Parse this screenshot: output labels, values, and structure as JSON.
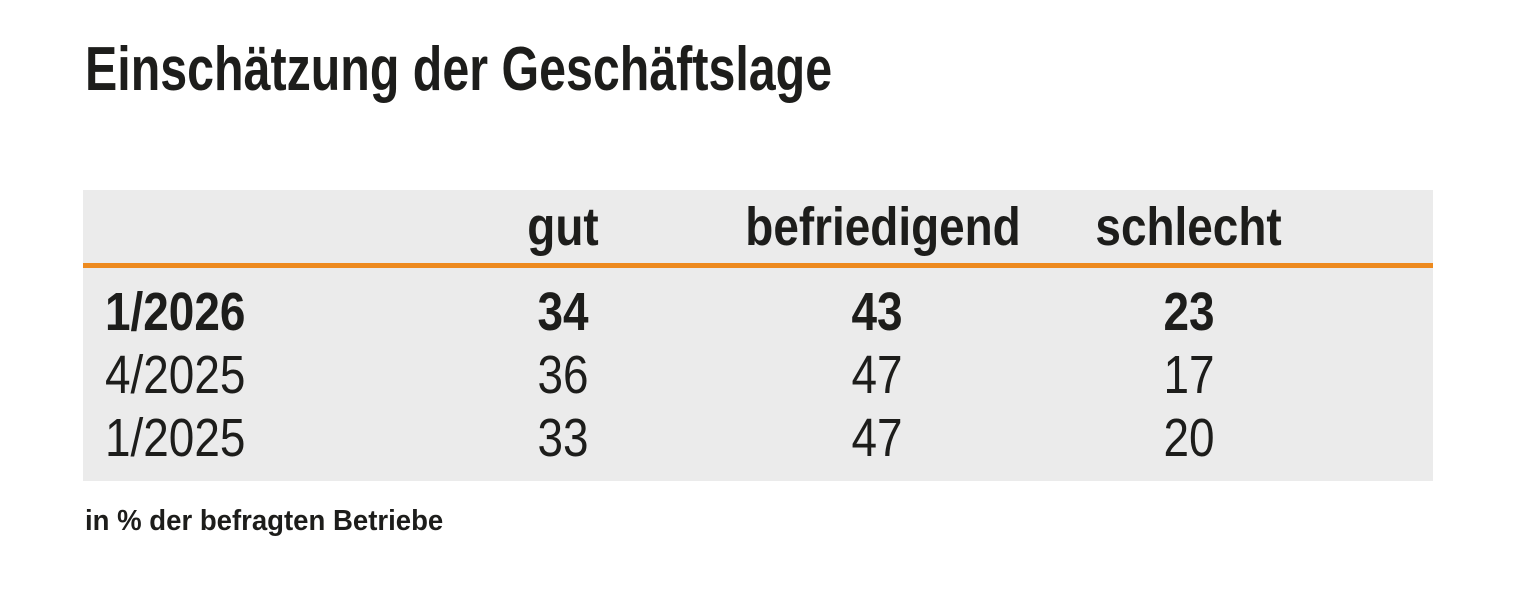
{
  "title": "Einschätzung der Geschäftslage",
  "table": {
    "header": [
      "gut",
      "befriedigend",
      "schlecht"
    ],
    "rows": [
      {
        "period": "1/2026",
        "values": [
          "34",
          "43",
          "23"
        ]
      },
      {
        "period": "4/2025",
        "values": [
          "36",
          "47",
          "17"
        ]
      },
      {
        "period": "1/2025",
        "values": [
          "33",
          "47",
          "20"
        ]
      }
    ]
  },
  "footnote": "in % der befragten Betriebe",
  "colors": {
    "accent_orange": "#ED8A1F",
    "table_background": "#EBEBEB",
    "text": "#1D1D1B"
  },
  "chart_data": {
    "type": "table",
    "title": "Einschätzung der Geschäftslage",
    "columns": [
      "",
      "gut",
      "befriedigend",
      "schlecht"
    ],
    "rows": [
      [
        "1/2026",
        34,
        43,
        23
      ],
      [
        "4/2025",
        36,
        47,
        17
      ],
      [
        "1/2025",
        33,
        47,
        20
      ]
    ],
    "unit": "% der befragten Betriebe",
    "note": "in % der befragten Betriebe",
    "highlighted_row": "1/2026"
  }
}
